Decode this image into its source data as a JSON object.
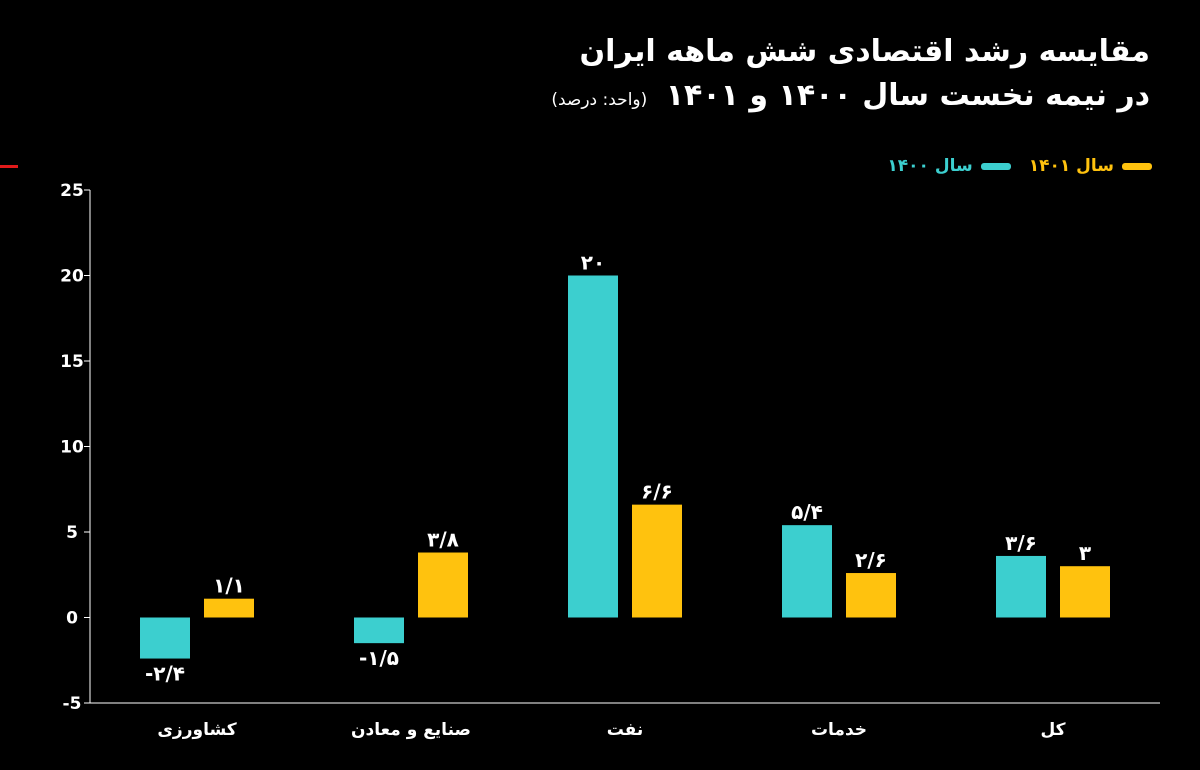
{
  "title": "مقایسه رشد اقتصادی شش ماهه ایران",
  "subtitle": "در نیمه نخست سال ۱۴۰۰ و ۱۴۰۱",
  "unit": "(واحد: درصد)",
  "colors": {
    "background": "#000000",
    "series_1401": "#FFC20E",
    "series_1400": "#3CCFCF",
    "text": "#FFFFFF",
    "axis": "#FFFFFF"
  },
  "chart_data": {
    "type": "bar",
    "categories": [
      "کشاورزی",
      "صنایع و معادن",
      "نفت",
      "خدمات",
      "کل"
    ],
    "series": [
      {
        "name": "سال ۱۴۰۰",
        "color": "#3CCFCF",
        "values": [
          -2.4,
          -1.5,
          20,
          5.4,
          3.6
        ],
        "labels": [
          "-۲/۴",
          "-۱/۵",
          "۲۰",
          "۵/۴",
          "۳/۶"
        ]
      },
      {
        "name": "سال ۱۴۰۱",
        "color": "#FFC20E",
        "values": [
          1.1,
          3.8,
          6.6,
          2.6,
          3
        ],
        "labels": [
          "۱/۱",
          "۳/۸",
          "۶/۶",
          "۲/۶",
          "۳"
        ]
      }
    ],
    "yticks": [
      "-5",
      "0",
      "5",
      "10",
      "15",
      "20",
      "25"
    ],
    "ylim": [
      -5,
      25
    ],
    "grid": false,
    "legend_position": "top-right"
  }
}
